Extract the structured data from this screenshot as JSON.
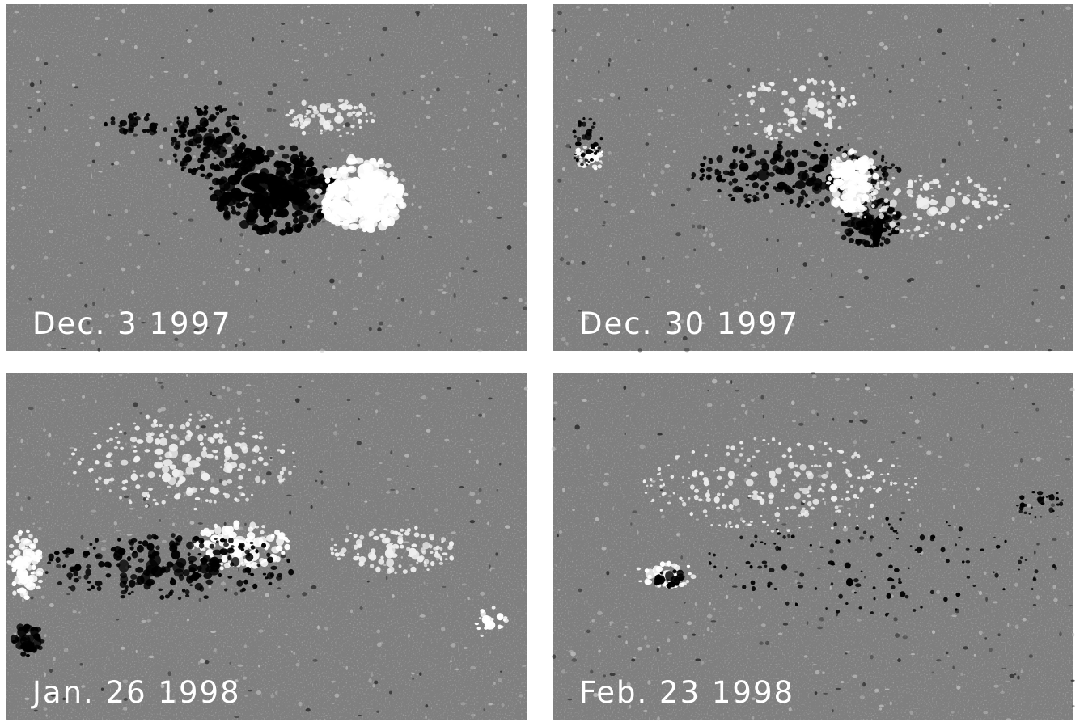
{
  "panels": [
    {
      "label": "Dec. 3 1997"
    },
    {
      "label": "Dec. 30 1997"
    },
    {
      "label": "Jan. 26 1998"
    },
    {
      "label": "Feb. 23 1998"
    }
  ]
}
